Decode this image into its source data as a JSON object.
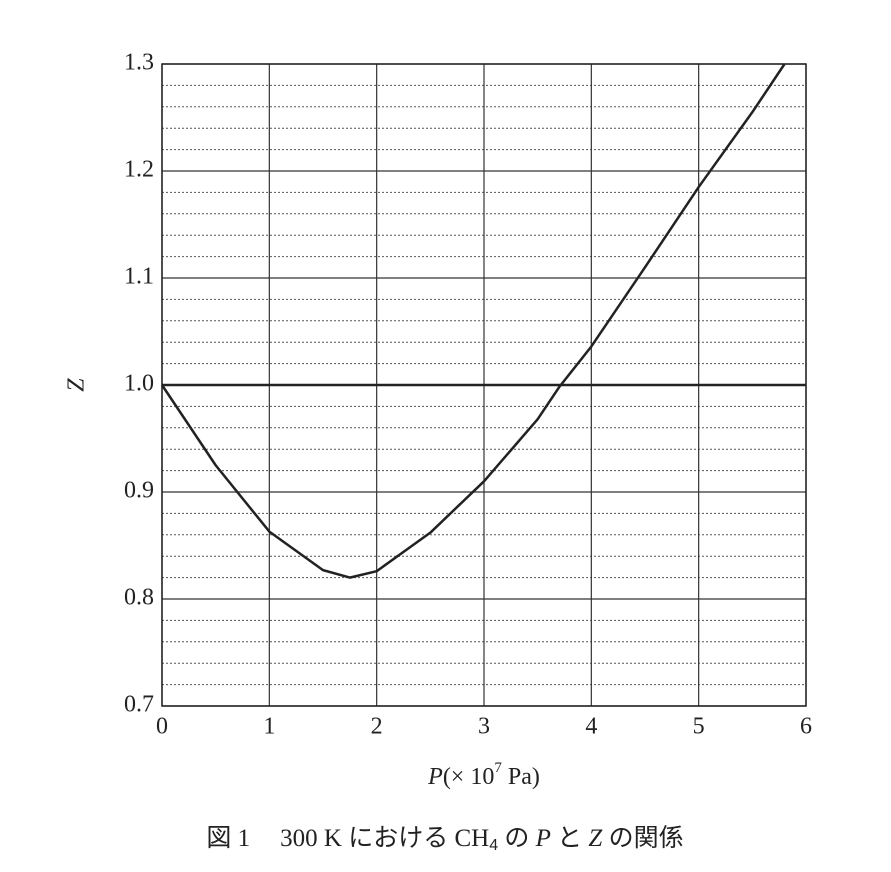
{
  "chart_data": {
    "type": "line",
    "x": [
      0,
      0.5,
      1,
      1.5,
      1.75,
      2,
      2.5,
      3,
      3.5,
      3.7,
      4,
      4.5,
      5,
      5.5,
      5.8
    ],
    "values": [
      1.0,
      0.925,
      0.863,
      0.827,
      0.82,
      0.826,
      0.862,
      0.91,
      0.968,
      0.998,
      1.036,
      1.11,
      1.185,
      1.255,
      1.3
    ],
    "color": "#222222",
    "hline": 1.0,
    "xlim": [
      0,
      6
    ],
    "ylim": [
      0.7,
      1.3
    ],
    "xticks": [
      0,
      1,
      2,
      3,
      4,
      5,
      6
    ],
    "yticks": [
      0.7,
      0.8,
      0.9,
      {
        "value": 1,
        "label": "1.0"
      },
      1.1,
      1.2,
      1.3
    ],
    "minor_divisions": 5,
    "grid": true,
    "ylabel": "Z",
    "xlabel": {
      "symbol": "P",
      "open": "(× 10",
      "exponent": "7",
      "close": " Pa)"
    },
    "caption": {
      "figure": "図 1",
      "text": "300 K における CH",
      "subscript": "4",
      "of": " の ",
      "p": "P",
      "and": " と ",
      "z": "Z",
      "tail": " の関係"
    }
  }
}
